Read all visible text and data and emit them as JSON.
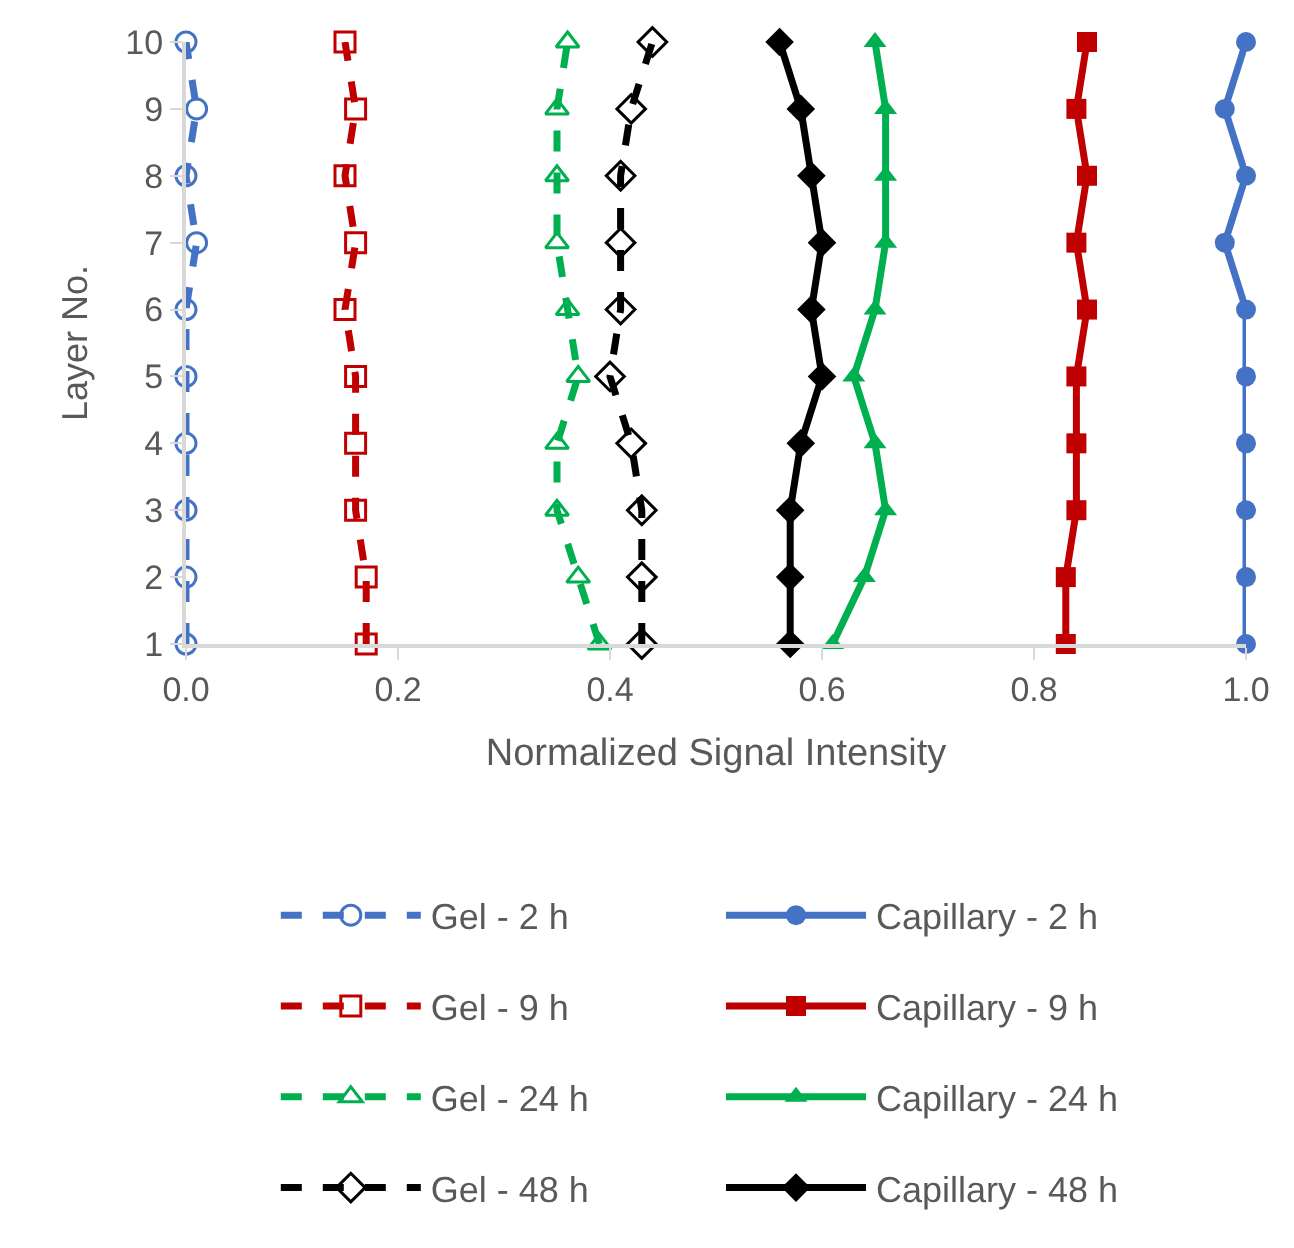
{
  "chart_data": {
    "type": "line",
    "xlabel": "Normalized Signal Intensity",
    "ylabel": "Layer No.",
    "xlim": [
      0,
      1
    ],
    "xticks": [
      {
        "value": 0,
        "label": "0.0"
      },
      0.2,
      0.4,
      0.6,
      0.8,
      {
        "value": 1,
        "label": "1.0"
      }
    ],
    "ylim": [
      1,
      10
    ],
    "yticks": [
      1,
      2,
      3,
      4,
      5,
      6,
      7,
      8,
      9,
      10
    ],
    "legend": "bottom",
    "series": [
      {
        "name": "Gel - 2 h",
        "color": "#4472c4",
        "marker": "circle",
        "line_style": "dashed",
        "x": [
          0.0,
          0.0,
          0.0,
          0.0,
          0.0,
          0.0,
          0.01,
          0.0,
          0.01,
          0.0
        ],
        "values": [
          1,
          2,
          3,
          4,
          5,
          6,
          7,
          8,
          9,
          10
        ]
      },
      {
        "name": "Capillary - 2 h",
        "color": "#4472c4",
        "marker": "circle",
        "line_style": "solid",
        "x": [
          1.0,
          1.0,
          1.0,
          1.0,
          1.0,
          1.0,
          0.98,
          1.0,
          0.98,
          1.0
        ],
        "values": [
          1,
          2,
          3,
          4,
          5,
          6,
          7,
          8,
          9,
          10
        ]
      },
      {
        "name": "Gel - 9 h",
        "color": "#c00000",
        "marker": "square",
        "line_style": "dashed",
        "x": [
          0.17,
          0.17,
          0.16,
          0.16,
          0.16,
          0.15,
          0.16,
          0.15,
          0.16,
          0.15
        ],
        "values": [
          1,
          2,
          3,
          4,
          5,
          6,
          7,
          8,
          9,
          10
        ]
      },
      {
        "name": "Capillary - 9 h",
        "color": "#c00000",
        "marker": "square",
        "line_style": "solid",
        "x": [
          0.83,
          0.83,
          0.84,
          0.84,
          0.84,
          0.85,
          0.84,
          0.85,
          0.84,
          0.85
        ],
        "values": [
          1,
          2,
          3,
          4,
          5,
          6,
          7,
          8,
          9,
          10
        ]
      },
      {
        "name": "Gel - 24 h",
        "color": "#00b050",
        "marker": "triangle",
        "line_style": "dashed",
        "x": [
          0.39,
          0.37,
          0.35,
          0.35,
          0.37,
          0.36,
          0.35,
          0.35,
          0.35,
          0.36
        ],
        "values": [
          1,
          2,
          3,
          4,
          5,
          6,
          7,
          8,
          9,
          10
        ]
      },
      {
        "name": "Capillary - 24 h",
        "color": "#00b050",
        "marker": "triangle",
        "line_style": "solid",
        "x": [
          0.61,
          0.64,
          0.66,
          0.65,
          0.63,
          0.65,
          0.66,
          0.66,
          0.66,
          0.65
        ],
        "values": [
          1,
          2,
          3,
          4,
          5,
          6,
          7,
          8,
          9,
          10
        ]
      },
      {
        "name": "Gel - 48 h",
        "color": "#000000",
        "marker": "diamond",
        "line_style": "dashed",
        "x": [
          0.43,
          0.43,
          0.43,
          0.42,
          0.4,
          0.41,
          0.41,
          0.41,
          0.42,
          0.44
        ],
        "values": [
          1,
          2,
          3,
          4,
          5,
          6,
          7,
          8,
          9,
          10
        ]
      },
      {
        "name": "Capillary - 48 h",
        "color": "#000000",
        "marker": "diamond",
        "line_style": "solid",
        "x": [
          0.57,
          0.57,
          0.57,
          0.58,
          0.6,
          0.59,
          0.6,
          0.59,
          0.58,
          0.56
        ],
        "values": [
          1,
          2,
          3,
          4,
          5,
          6,
          7,
          8,
          9,
          10
        ]
      }
    ]
  }
}
